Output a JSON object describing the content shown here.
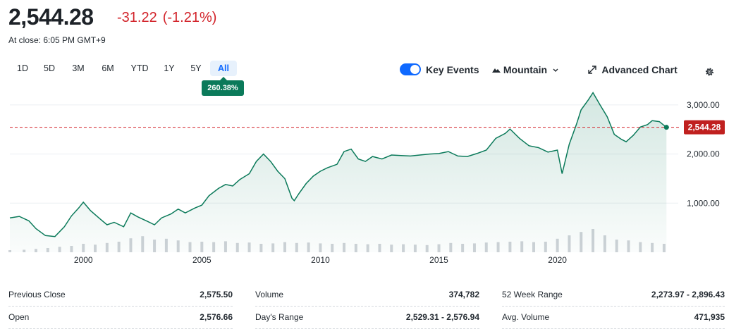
{
  "quote": {
    "price": "2,544.28",
    "change": "-31.22",
    "change_pct": "(-1.21%)",
    "close_time": "At close: 6:05 PM GMT+9"
  },
  "ranges": [
    "1D",
    "5D",
    "3M",
    "6M",
    "YTD",
    "1Y",
    "5Y",
    "All"
  ],
  "active_range": "All",
  "range_badge": "260.38%",
  "toolbar": {
    "key_events": "Key Events",
    "chart_style": "Mountain",
    "advanced_chart": "Advanced Chart",
    "icons": [
      "toggle-switch",
      "mountain-icon",
      "chevron-down-icon",
      "expand-icon",
      "gear-icon"
    ]
  },
  "colors": {
    "line": "#0b7a5a",
    "negative": "#d2232a",
    "accent": "#0f69ff",
    "volume": "#cfd3d8"
  },
  "chart_data": {
    "type": "area",
    "x_ticks": [
      "2000",
      "2005",
      "2010",
      "2015",
      "2020"
    ],
    "y_ticks": [
      "1,000.00",
      "2,000.00",
      "3,000.00"
    ],
    "ylim": [
      0,
      3300
    ],
    "xlim": [
      1996.9,
      2024.8
    ],
    "grid": true,
    "last_price_label": "2,544.28",
    "last_price": 2544.28,
    "series": [
      {
        "x": [
          1996.9,
          1997.3,
          1997.7,
          1998.0,
          1998.4,
          1998.8,
          1999.2,
          1999.5,
          1999.8,
          2000.0,
          2000.3,
          2000.7,
          2001.0,
          2001.3,
          2001.7,
          2002.0,
          2002.3,
          2002.7,
          2003.0,
          2003.3,
          2003.7,
          2004.0,
          2004.3,
          2004.7,
          2005.0,
          2005.3,
          2005.7,
          2006.0,
          2006.3,
          2006.6,
          2007.0,
          2007.3,
          2007.6,
          2007.9,
          2008.2,
          2008.5,
          2008.8,
          2008.9,
          2009.1,
          2009.4,
          2009.7,
          2010.0,
          2010.3,
          2010.7,
          2011.0,
          2011.3,
          2011.6,
          2011.9,
          2012.2,
          2012.6,
          2013.0,
          2013.4,
          2013.8,
          2014.2,
          2014.6,
          2015.0,
          2015.4,
          2015.8,
          2016.2,
          2016.6,
          2017.0,
          2017.4,
          2017.8,
          2018.0,
          2018.4,
          2018.8,
          2019.2,
          2019.6,
          2020.0,
          2020.2,
          2020.5,
          2020.8,
          2021.0,
          2021.3,
          2021.5,
          2021.8,
          2022.1,
          2022.4,
          2022.7,
          2022.9,
          2023.2,
          2023.5,
          2023.8,
          2024.0,
          2024.3,
          2024.6
        ],
        "y": [
          700,
          730,
          640,
          480,
          340,
          320,
          520,
          740,
          900,
          1020,
          850,
          680,
          560,
          610,
          520,
          800,
          720,
          630,
          560,
          700,
          780,
          880,
          800,
          900,
          960,
          1150,
          1300,
          1380,
          1350,
          1480,
          1600,
          1850,
          2000,
          1850,
          1650,
          1500,
          1100,
          1050,
          1200,
          1400,
          1550,
          1650,
          1720,
          1790,
          2050,
          2100,
          1900,
          1850,
          1950,
          1900,
          1980,
          1970,
          1960,
          1980,
          2000,
          2010,
          2050,
          1960,
          1950,
          2010,
          2080,
          2320,
          2420,
          2510,
          2320,
          2170,
          2130,
          2040,
          2080,
          1600,
          2200,
          2600,
          2900,
          3100,
          3250,
          3000,
          2760,
          2400,
          2300,
          2250,
          2380,
          2550,
          2600,
          2680,
          2660,
          2544.28
        ]
      }
    ],
    "volume": {
      "x": [
        1996.9,
        1997.5,
        1998.0,
        1998.5,
        1999.0,
        1999.5,
        2000.0,
        2000.5,
        2001.0,
        2001.5,
        2002.0,
        2002.5,
        2003.0,
        2003.5,
        2004.0,
        2004.5,
        2005.0,
        2005.5,
        2006.0,
        2006.5,
        2007.0,
        2007.5,
        2008.0,
        2008.5,
        2009.0,
        2009.5,
        2010.0,
        2010.5,
        2011.0,
        2011.5,
        2012.0,
        2012.5,
        2013.0,
        2013.5,
        2014.0,
        2014.5,
        2015.0,
        2015.5,
        2016.0,
        2016.5,
        2017.0,
        2017.5,
        2018.0,
        2018.5,
        2019.0,
        2019.5,
        2020.0,
        2020.5,
        2021.0,
        2021.5,
        2022.0,
        2022.5,
        2023.0,
        2023.5,
        2024.0,
        2024.5
      ],
      "y": [
        0.05,
        0.06,
        0.08,
        0.1,
        0.13,
        0.15,
        0.2,
        0.18,
        0.22,
        0.25,
        0.33,
        0.38,
        0.3,
        0.32,
        0.28,
        0.24,
        0.25,
        0.24,
        0.26,
        0.22,
        0.23,
        0.2,
        0.21,
        0.24,
        0.22,
        0.23,
        0.21,
        0.2,
        0.22,
        0.2,
        0.19,
        0.2,
        0.18,
        0.19,
        0.18,
        0.17,
        0.19,
        0.22,
        0.2,
        0.21,
        0.23,
        0.24,
        0.25,
        0.26,
        0.24,
        0.25,
        0.32,
        0.4,
        0.48,
        0.55,
        0.4,
        0.3,
        0.28,
        0.24,
        0.22,
        0.2
      ]
    }
  },
  "stats": [
    {
      "label": "Previous Close",
      "value": "2,575.50"
    },
    {
      "label": "Open",
      "value": "2,576.66"
    },
    {
      "label": "Volume",
      "value": "374,782"
    },
    {
      "label": "Day's Range",
      "value": "2,529.31 - 2,576.94"
    },
    {
      "label": "52 Week Range",
      "value": "2,273.97 - 2,896.43"
    },
    {
      "label": "Avg. Volume",
      "value": "471,935"
    }
  ]
}
